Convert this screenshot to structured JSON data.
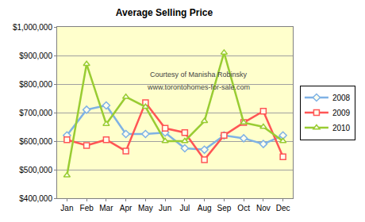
{
  "chart_data": {
    "type": "line",
    "title": "Average Selling Price",
    "categories": [
      "Jan",
      "Feb",
      "Mar",
      "Apr",
      "May",
      "Jun",
      "Jul",
      "Aug",
      "Sep",
      "Oct",
      "Nov",
      "Dec"
    ],
    "series": [
      {
        "name": "2008",
        "color": "#7fb2e5",
        "marker": "diamond",
        "values": [
          620000,
          710000,
          725000,
          625000,
          625000,
          630000,
          575000,
          570000,
          620000,
          610000,
          590000,
          620000
        ]
      },
      {
        "name": "2009",
        "color": "#ff5555",
        "marker": "square",
        "values": [
          605000,
          585000,
          605000,
          565000,
          735000,
          645000,
          630000,
          535000,
          620000,
          665000,
          705000,
          545000
        ]
      },
      {
        "name": "2010",
        "color": "#99cc33",
        "marker": "triangle-up",
        "values": [
          480000,
          870000,
          660000,
          755000,
          720000,
          600000,
          600000,
          670000,
          910000,
          665000,
          650000,
          600000
        ]
      }
    ],
    "ylim": [
      400000,
      1000000
    ],
    "yticks": [
      {
        "value": 400000,
        "label": "$400,000"
      },
      {
        "value": 500000,
        "label": "$500,000"
      },
      {
        "value": 600000,
        "label": "$600,000"
      },
      {
        "value": 700000,
        "label": "$700,000"
      },
      {
        "value": 800000,
        "label": "$800,000"
      },
      {
        "value": 900000,
        "label": "$900,000"
      },
      {
        "value": 1000000,
        "label": "$1,000,000"
      }
    ],
    "grid": true,
    "legend": "right",
    "annotations": [
      "Courtesy of Manisha Robinsky",
      "www.torontohomes-for-sale.com"
    ]
  }
}
